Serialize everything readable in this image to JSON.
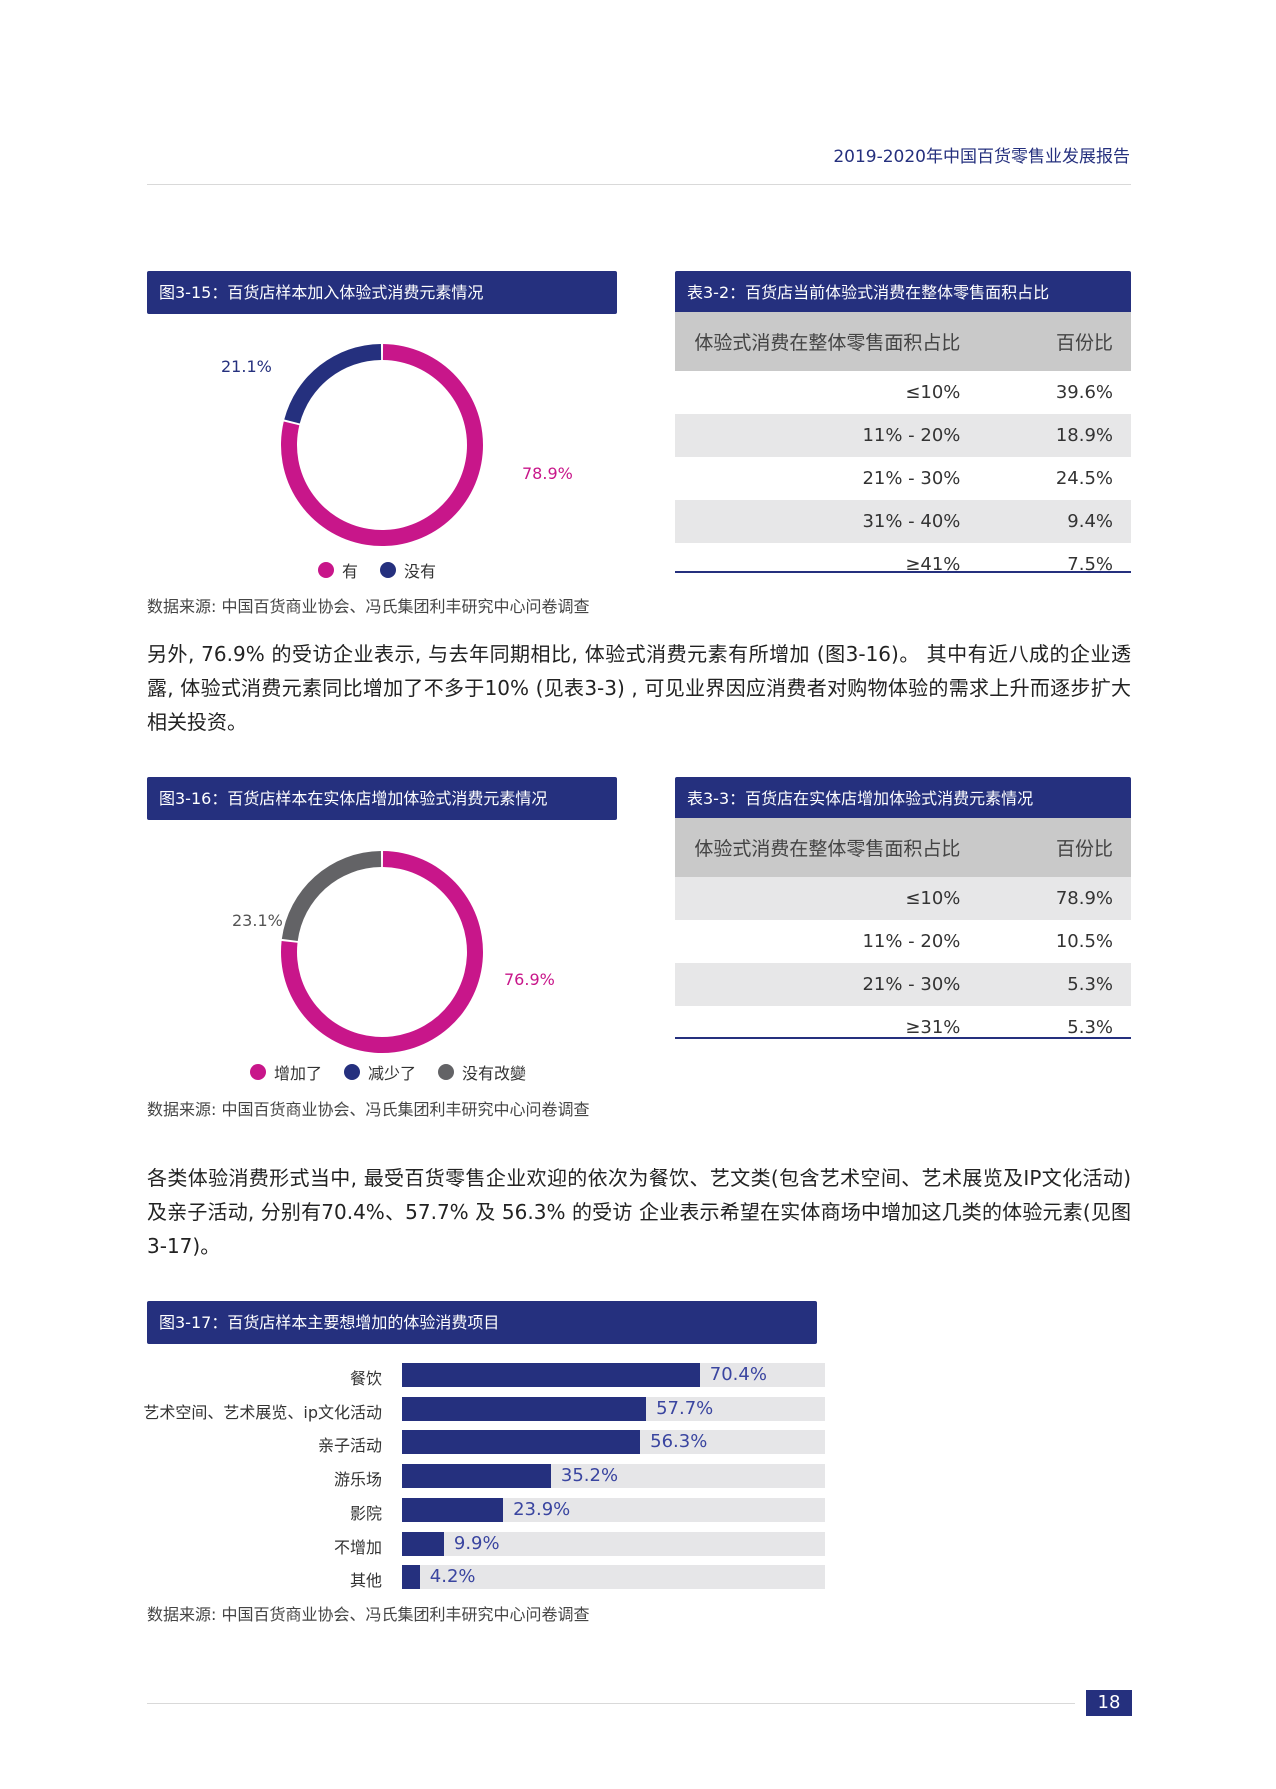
{
  "header": {
    "report_title": "2019-2020年中国百货零售业发展报告"
  },
  "fig315": {
    "title": "图3-15：百货店样本加入体验式消费元素情况",
    "legend": [
      "有",
      "没有"
    ],
    "source": "数据来源: 中国百货商业协会、冯氏集团利丰研究中心问卷调查",
    "chart_data": {
      "type": "pie",
      "title": "图3-15：百货店样本加入体验式消费元素情况",
      "categories": [
        "有",
        "没有"
      ],
      "values": [
        78.9,
        21.1
      ],
      "labels": [
        "78.9%",
        "21.1%"
      ],
      "colors": [
        "#c8168a",
        "#25307e"
      ]
    }
  },
  "tbl32": {
    "title": "表3-2：百货店当前体验式消费在整体零售面积占比",
    "headers": [
      "体验式消费在整体零售面积占比",
      "百份比"
    ],
    "rows": [
      [
        "≤10%",
        "39.6%"
      ],
      [
        "11% - 20%",
        "18.9%"
      ],
      [
        "21% - 30%",
        "24.5%"
      ],
      [
        "31% - 40%",
        "9.4%"
      ],
      [
        "≥41%",
        "7.5%"
      ]
    ]
  },
  "para1": "另外, 76.9% 的受访企业表示, 与去年同期相比, 体验式消费元素有所增加 (图3-16)。 其中有近八成的企业透露, 体验式消费元素同比增加了不多于10% (见表3-3) , 可见业界因应消费者对购物体验的需求上升而逐步扩大相关投资。",
  "fig316": {
    "title": "图3-16：百货店样本在实体店增加体验式消费元素情况",
    "legend": [
      "增加了",
      "减少了",
      "没有改變"
    ],
    "source": "数据来源: 中国百货商业协会、冯氏集团利丰研究中心问卷调查",
    "chart_data": {
      "type": "pie",
      "title": "图3-16：百货店样本在实体店增加体验式消费元素情况",
      "categories": [
        "增加了",
        "减少了",
        "没有改變"
      ],
      "values": [
        76.9,
        0,
        23.1
      ],
      "labels": [
        "76.9%",
        "23.1%"
      ],
      "colors": [
        "#c8168a",
        "#25307e",
        "#636366"
      ]
    }
  },
  "tbl33": {
    "title": "表3-3：百货店在实体店增加体验式消费元素情况",
    "headers": [
      "体验式消费在整体零售面积占比",
      "百份比"
    ],
    "rows": [
      [
        "≤10%",
        "78.9%"
      ],
      [
        "11% - 20%",
        "10.5%"
      ],
      [
        "21% - 30%",
        "5.3%"
      ],
      [
        "≥31%",
        "5.3%"
      ]
    ]
  },
  "para2": "各类体验消费形式当中, 最受百货零售企业欢迎的依次为餐饮、艺文类(包含艺术空间、艺术展览及IP文化活动) 及亲子活动, 分别有70.4%、57.7% 及 56.3% 的受访 企业表示希望在实体商场中增加这几类的体验元素(见图3-17)。",
  "fig317": {
    "title": "图3-17：百货店样本主要想增加的体验消费项目",
    "source": "数据来源: 中国百货商业协会、冯氏集团利丰研究中心问卷调查",
    "chart_data": {
      "type": "bar",
      "title": "图3-17：百货店样本主要想增加的体验消费项目",
      "categories": [
        "餐饮",
        "艺术空间、艺术展览、ip文化活动",
        "亲子活动",
        "游乐场",
        "影院",
        "不增加",
        "其他"
      ],
      "values": [
        70.4,
        57.7,
        56.3,
        35.2,
        23.9,
        9.9,
        4.2
      ],
      "labels": [
        "70.4%",
        "57.7%",
        "56.3%",
        "35.2%",
        "23.9%",
        "9.9%",
        "4.2%"
      ],
      "xlim": [
        0,
        100
      ],
      "color": "#25307e"
    }
  },
  "page_number": "18"
}
